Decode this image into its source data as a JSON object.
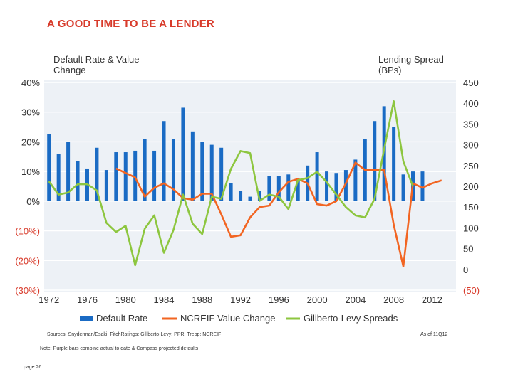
{
  "slide": {
    "title": "A GOOD TIME TO BE A LENDER",
    "sources": "Sources: Snyderman/Esaki; FitchRatings; Giliberto-Levy; PPR; Trepp; NCREIF",
    "as_of": "As of 11Q12",
    "note": "Note: Purple bars combine actual to date & Compass projected defaults",
    "page": "page 26"
  },
  "chart_data": {
    "type": "bar+line",
    "left_axis_title": [
      "Default Rate & Value",
      "Change"
    ],
    "right_axis_title": [
      "Lending Spread",
      "(BPs)"
    ],
    "left_axis": {
      "range": [
        -30,
        40
      ],
      "ticks": [
        40,
        30,
        20,
        10,
        0,
        -10,
        -20,
        -30
      ],
      "tick_labels": [
        "40%",
        "30%",
        "20%",
        "10%",
        "0%",
        "(10%)",
        "(20%)",
        "(30%)"
      ]
    },
    "right_axis": {
      "range": [
        -50,
        450
      ],
      "ticks": [
        450,
        400,
        350,
        300,
        250,
        200,
        150,
        100,
        50,
        0,
        -50
      ],
      "tick_labels": [
        "450",
        "400",
        "350",
        "300",
        "250",
        "200",
        "150",
        "100",
        "50",
        "0",
        "(50)"
      ]
    },
    "x_axis": {
      "range": [
        1971.5,
        2014.5
      ],
      "ticks": [
        1972,
        1976,
        1980,
        1984,
        1988,
        1992,
        1996,
        2000,
        2004,
        2008,
        2012
      ],
      "tick_labels": [
        "1972",
        "1976",
        "1980",
        "1984",
        "1988",
        "1992",
        "1996",
        "2000",
        "2004",
        "2008",
        "2012"
      ]
    },
    "grid": true,
    "legend": [
      {
        "name": "Default Rate",
        "color": "#1a6bc4",
        "kind": "bar"
      },
      {
        "name": "NCREIF Value Change",
        "color": "#f26522",
        "kind": "line"
      },
      {
        "name": "Giliberto-Levy Spreads",
        "color": "#8dc63f",
        "kind": "line"
      }
    ],
    "default_rate": {
      "years": [
        1972,
        1973,
        1974,
        1975,
        1976,
        1977,
        1978,
        1979,
        1980,
        1981,
        1982,
        1983,
        1984,
        1985,
        1986,
        1987,
        1988,
        1989,
        1990,
        1991,
        1992,
        1993,
        1994,
        1995,
        1996,
        1997,
        1998,
        1999,
        2000,
        2001,
        2002,
        2003,
        2004,
        2005,
        2006,
        2007,
        2008,
        2009,
        2010,
        2011
      ],
      "values": [
        22.5,
        16,
        20,
        13.5,
        11,
        18,
        10.5,
        16.5,
        16.5,
        17,
        21,
        17,
        27,
        21,
        31.5,
        23.5,
        20,
        19,
        18,
        6,
        3.5,
        1.5,
        3.5,
        8.5,
        8.5,
        9,
        7,
        12,
        16.5,
        10,
        9.5,
        10.5,
        14,
        21,
        27,
        32,
        25,
        9,
        10,
        10
      ]
    },
    "ncreif": {
      "years": [
        1979,
        1980,
        1981,
        1982,
        1983,
        1984,
        1985,
        1986,
        1987,
        1988,
        1989,
        1990,
        1991,
        1992,
        1993,
        1994,
        1995,
        1996,
        1997,
        1998,
        1999,
        2000,
        2001,
        2002,
        2003,
        2004,
        2005,
        2006,
        2007,
        2008,
        2009,
        2010,
        2011,
        2012,
        2013
      ],
      "values": [
        11,
        9.5,
        8,
        1.5,
        4.5,
        6,
        4,
        1,
        0.5,
        2.5,
        2.5,
        -4.5,
        -12,
        -11.5,
        -5.5,
        -2,
        -1.5,
        3,
        6.5,
        7.5,
        6,
        -1,
        -1.5,
        0,
        6,
        13,
        10.5,
        10.5,
        10.5,
        -8,
        -22,
        6,
        4.5,
        6,
        7
      ]
    },
    "spreads": {
      "years": [
        1972,
        1973,
        1974,
        1975,
        1976,
        1977,
        1978,
        1979,
        1980,
        1981,
        1982,
        1983,
        1984,
        1985,
        1986,
        1987,
        1988,
        1989,
        1990,
        1991,
        1992,
        1993,
        1994,
        1995,
        1996,
        1997,
        1998,
        1999,
        2000,
        2001,
        2002,
        2003,
        2004,
        2005,
        2006,
        2007,
        2008,
        2009,
        2010
      ],
      "values": [
        212,
        180,
        185,
        205,
        205,
        190,
        112,
        90,
        105,
        10,
        98,
        130,
        40,
        95,
        180,
        110,
        85,
        175,
        170,
        242,
        285,
        280,
        165,
        180,
        175,
        145,
        215,
        220,
        235,
        210,
        180,
        150,
        130,
        125,
        170,
        290,
        405,
        260,
        200
      ]
    }
  }
}
